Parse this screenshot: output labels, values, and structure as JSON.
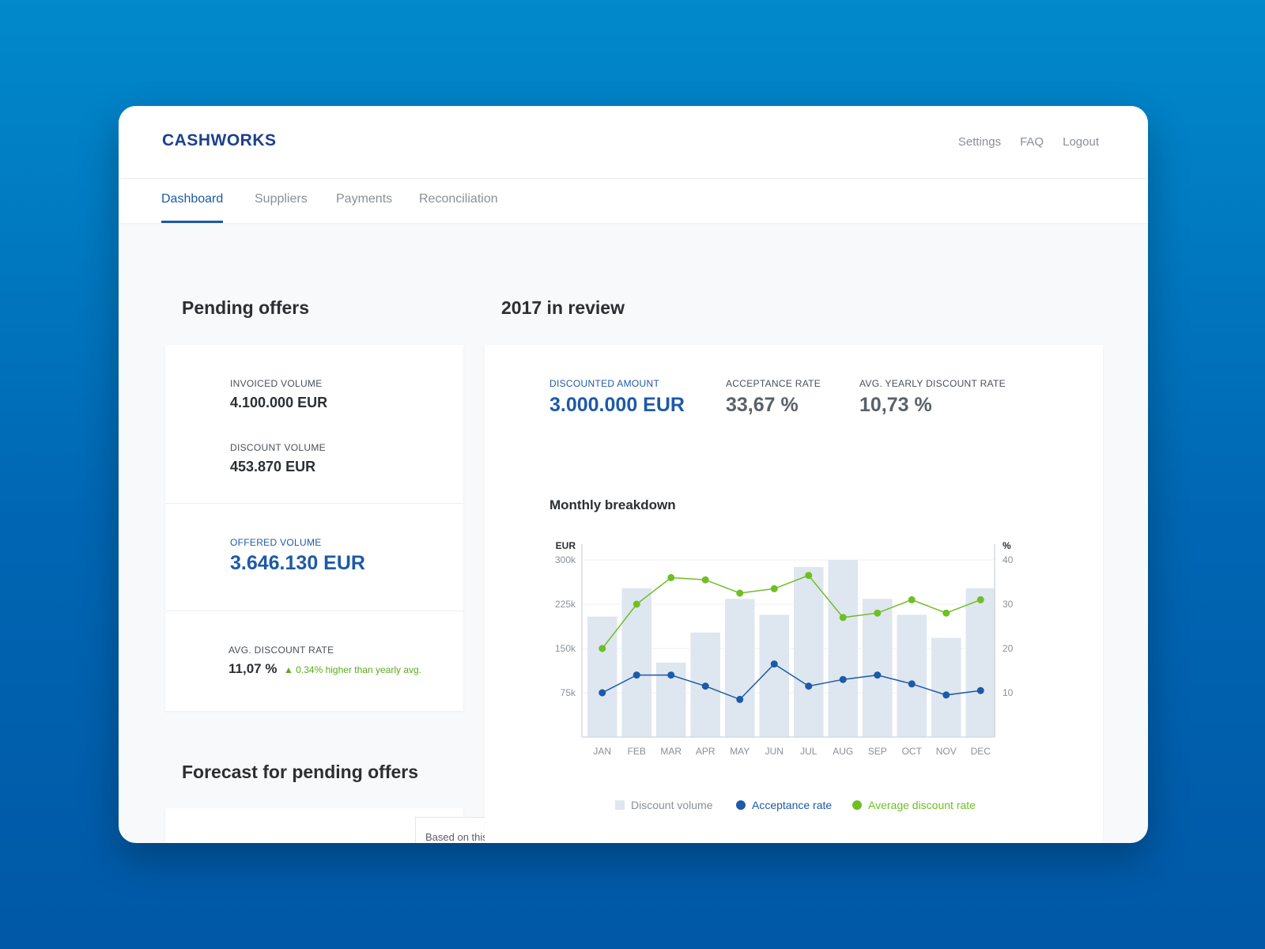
{
  "app": {
    "logo": "CASHWORKS"
  },
  "header_links": [
    "Settings",
    "FAQ",
    "Logout"
  ],
  "tabs": [
    {
      "label": "Dashboard",
      "active": true
    },
    {
      "label": "Suppliers"
    },
    {
      "label": "Payments"
    },
    {
      "label": "Reconciliation"
    }
  ],
  "pending": {
    "title": "Pending offers",
    "invoiced_label": "INVOICED VOLUME",
    "invoiced_value": "4.100.000 EUR",
    "discount_label": "DISCOUNT VOLUME",
    "discount_value": "453.870 EUR",
    "offered_label": "OFFERED VOLUME",
    "offered_value": "3.646.130 EUR",
    "avg_label": "AVG. DISCOUNT RATE",
    "avg_value": "11,07 %",
    "avg_trend": "0.34% higher than yearly avg."
  },
  "forecast": {
    "title": "Forecast for pending offers",
    "tooltip": "Based on this year’s average"
  },
  "review": {
    "title": "2017 in review",
    "discounted_label": "DISCOUNTED AMOUNT",
    "discounted_value": "3.000.000 EUR",
    "acceptance_label": "ACCEPTANCE RATE",
    "acceptance_value": "33,67 %",
    "yearly_label": "AVG. YEARLY DISCOUNT RATE",
    "yearly_value": "10,73 %",
    "chart_title": "Monthly breakdown"
  },
  "colors": {
    "accent": "#1d5aa7",
    "green": "#6fbf24",
    "bar": "#dee6f0"
  },
  "chart_data": {
    "type": "bar",
    "title": "Monthly breakdown",
    "categories": [
      "JAN",
      "FEB",
      "MAR",
      "APR",
      "MAY",
      "JUN",
      "JUL",
      "AUG",
      "SEP",
      "OCT",
      "NOV",
      "DEC"
    ],
    "ylabel": "EUR",
    "y2label": "%",
    "ylim": [
      0,
      300000
    ],
    "y2lim": [
      0,
      40
    ],
    "yticks": [
      {
        "v": 75000,
        "label": "75k"
      },
      {
        "v": 150000,
        "label": "150k"
      },
      {
        "v": 225000,
        "label": "225k"
      },
      {
        "v": 300000,
        "label": "300k"
      }
    ],
    "y2ticks": [
      10,
      20,
      30,
      40
    ],
    "grid": true,
    "legend_position": "bottom",
    "series": [
      {
        "name": "Discount volume",
        "type": "bar",
        "axis": "left",
        "color": "#dee6f0",
        "values": [
          204000,
          252000,
          126000,
          177000,
          234000,
          207000,
          288000,
          300000,
          234000,
          207000,
          168000,
          252000
        ]
      },
      {
        "name": "Acceptance rate",
        "type": "line",
        "axis": "right",
        "color": "#1d5aa7",
        "values": [
          10,
          14,
          14,
          11.5,
          8.5,
          16.5,
          11.5,
          13,
          14,
          12,
          9.5,
          10.5
        ]
      },
      {
        "name": "Average discount rate",
        "type": "line",
        "axis": "right",
        "color": "#6fbf24",
        "values": [
          20,
          30,
          36,
          35.5,
          32.5,
          33.5,
          36.5,
          27,
          28,
          31,
          28,
          31
        ]
      }
    ]
  }
}
